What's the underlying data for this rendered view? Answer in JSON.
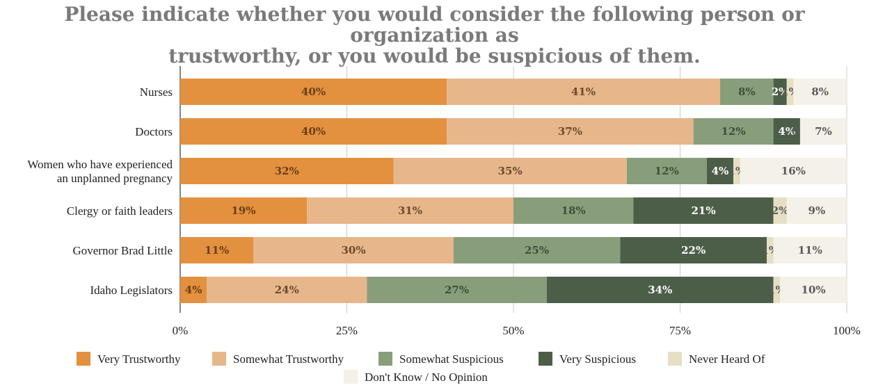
{
  "chart_data": {
    "type": "bar",
    "orientation": "horizontal",
    "stacked": true,
    "title_lines": [
      "Please indicate whether you would consider the following person or organization as",
      "trustworthy, or you would be suspicious of them."
    ],
    "xlabel": "",
    "ylabel": "",
    "xlim": [
      0,
      100
    ],
    "x_ticks": [
      "0%",
      "25%",
      "50%",
      "75%",
      "100%"
    ],
    "grid": "vertical",
    "legend_position": "bottom",
    "categories": [
      "Nurses",
      "Doctors",
      "Women who have experienced an unplanned pregnancy",
      "Clergy or faith leaders",
      "Governor Brad Little",
      "Idaho Legislators"
    ],
    "series": [
      {
        "name": "Very Trustworthy",
        "color": "#E3913F",
        "label_color": "#6b3d12",
        "values": [
          40,
          40,
          32,
          19,
          11,
          4
        ]
      },
      {
        "name": "Somewhat Trustworthy",
        "color": "#E8B68B",
        "label_color": "#6b4a2a",
        "values": [
          41,
          37,
          35,
          31,
          30,
          24
        ]
      },
      {
        "name": "Somewhat Suspicious",
        "color": "#889E7B",
        "label_color": "#3c4f38",
        "values": [
          8,
          12,
          12,
          18,
          25,
          27
        ]
      },
      {
        "name": "Very Suspicious",
        "color": "#4C5E48",
        "label_color": "#ffffff",
        "values": [
          2,
          4,
          4,
          21,
          22,
          34
        ]
      },
      {
        "name": "Never Heard Of",
        "color": "#E6DFC3",
        "label_color": "#5a5a5a",
        "values": [
          1,
          0,
          1,
          2,
          1,
          1
        ]
      },
      {
        "name": "Don't Know / No Opinion",
        "color": "#F4F1E8",
        "label_color": "#5a5a5a",
        "values": [
          8,
          7,
          16,
          9,
          11,
          10
        ]
      }
    ]
  }
}
